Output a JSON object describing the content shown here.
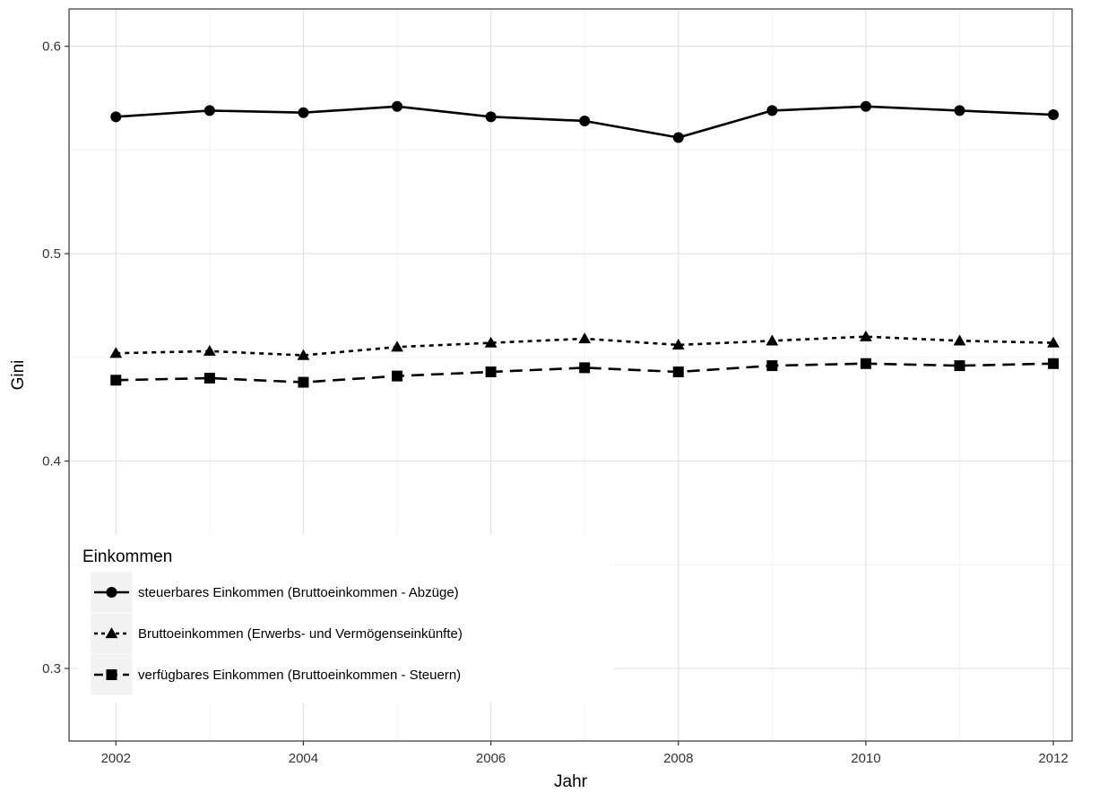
{
  "chart_data": {
    "type": "line",
    "title": "",
    "xlabel": "Jahr",
    "ylabel": "Gini",
    "x": [
      2002,
      2003,
      2004,
      2005,
      2006,
      2007,
      2008,
      2009,
      2010,
      2011,
      2012
    ],
    "x_ticks": [
      2002,
      2004,
      2006,
      2008,
      2010,
      2012
    ],
    "x_tick_labels": [
      "2002",
      "2004",
      "2006",
      "2008",
      "2010",
      "2012"
    ],
    "y_ticks": [
      0.3,
      0.4,
      0.5,
      0.6
    ],
    "y_tick_labels": [
      "0.3",
      "0.4",
      "0.5",
      "0.6"
    ],
    "xlim": [
      2001.5,
      2012.2
    ],
    "ylim": [
      0.265,
      0.618
    ],
    "grid": true,
    "legend": {
      "title": "Einkommen",
      "position": "bottom-left"
    },
    "series": [
      {
        "name": "steuerbares Einkommen (Bruttoeinkommen - Abzüge)",
        "linetype": "solid",
        "marker": "circle",
        "color": "#000000",
        "values": [
          0.566,
          0.569,
          0.568,
          0.571,
          0.566,
          0.564,
          0.556,
          0.569,
          0.571,
          0.569,
          0.567
        ]
      },
      {
        "name": "Bruttoeinkommen (Erwerbs- und Vermögenseinkünfte)",
        "linetype": "dotted",
        "marker": "triangle",
        "color": "#000000",
        "values": [
          0.452,
          0.453,
          0.451,
          0.455,
          0.457,
          0.459,
          0.456,
          0.458,
          0.46,
          0.458,
          0.457
        ]
      },
      {
        "name": "verfügbares Einkommen (Bruttoeinkommen - Steuern)",
        "linetype": "dashed",
        "marker": "square",
        "color": "#000000",
        "values": [
          0.439,
          0.44,
          0.438,
          0.441,
          0.443,
          0.445,
          0.443,
          0.446,
          0.447,
          0.446,
          0.447
        ]
      }
    ]
  }
}
